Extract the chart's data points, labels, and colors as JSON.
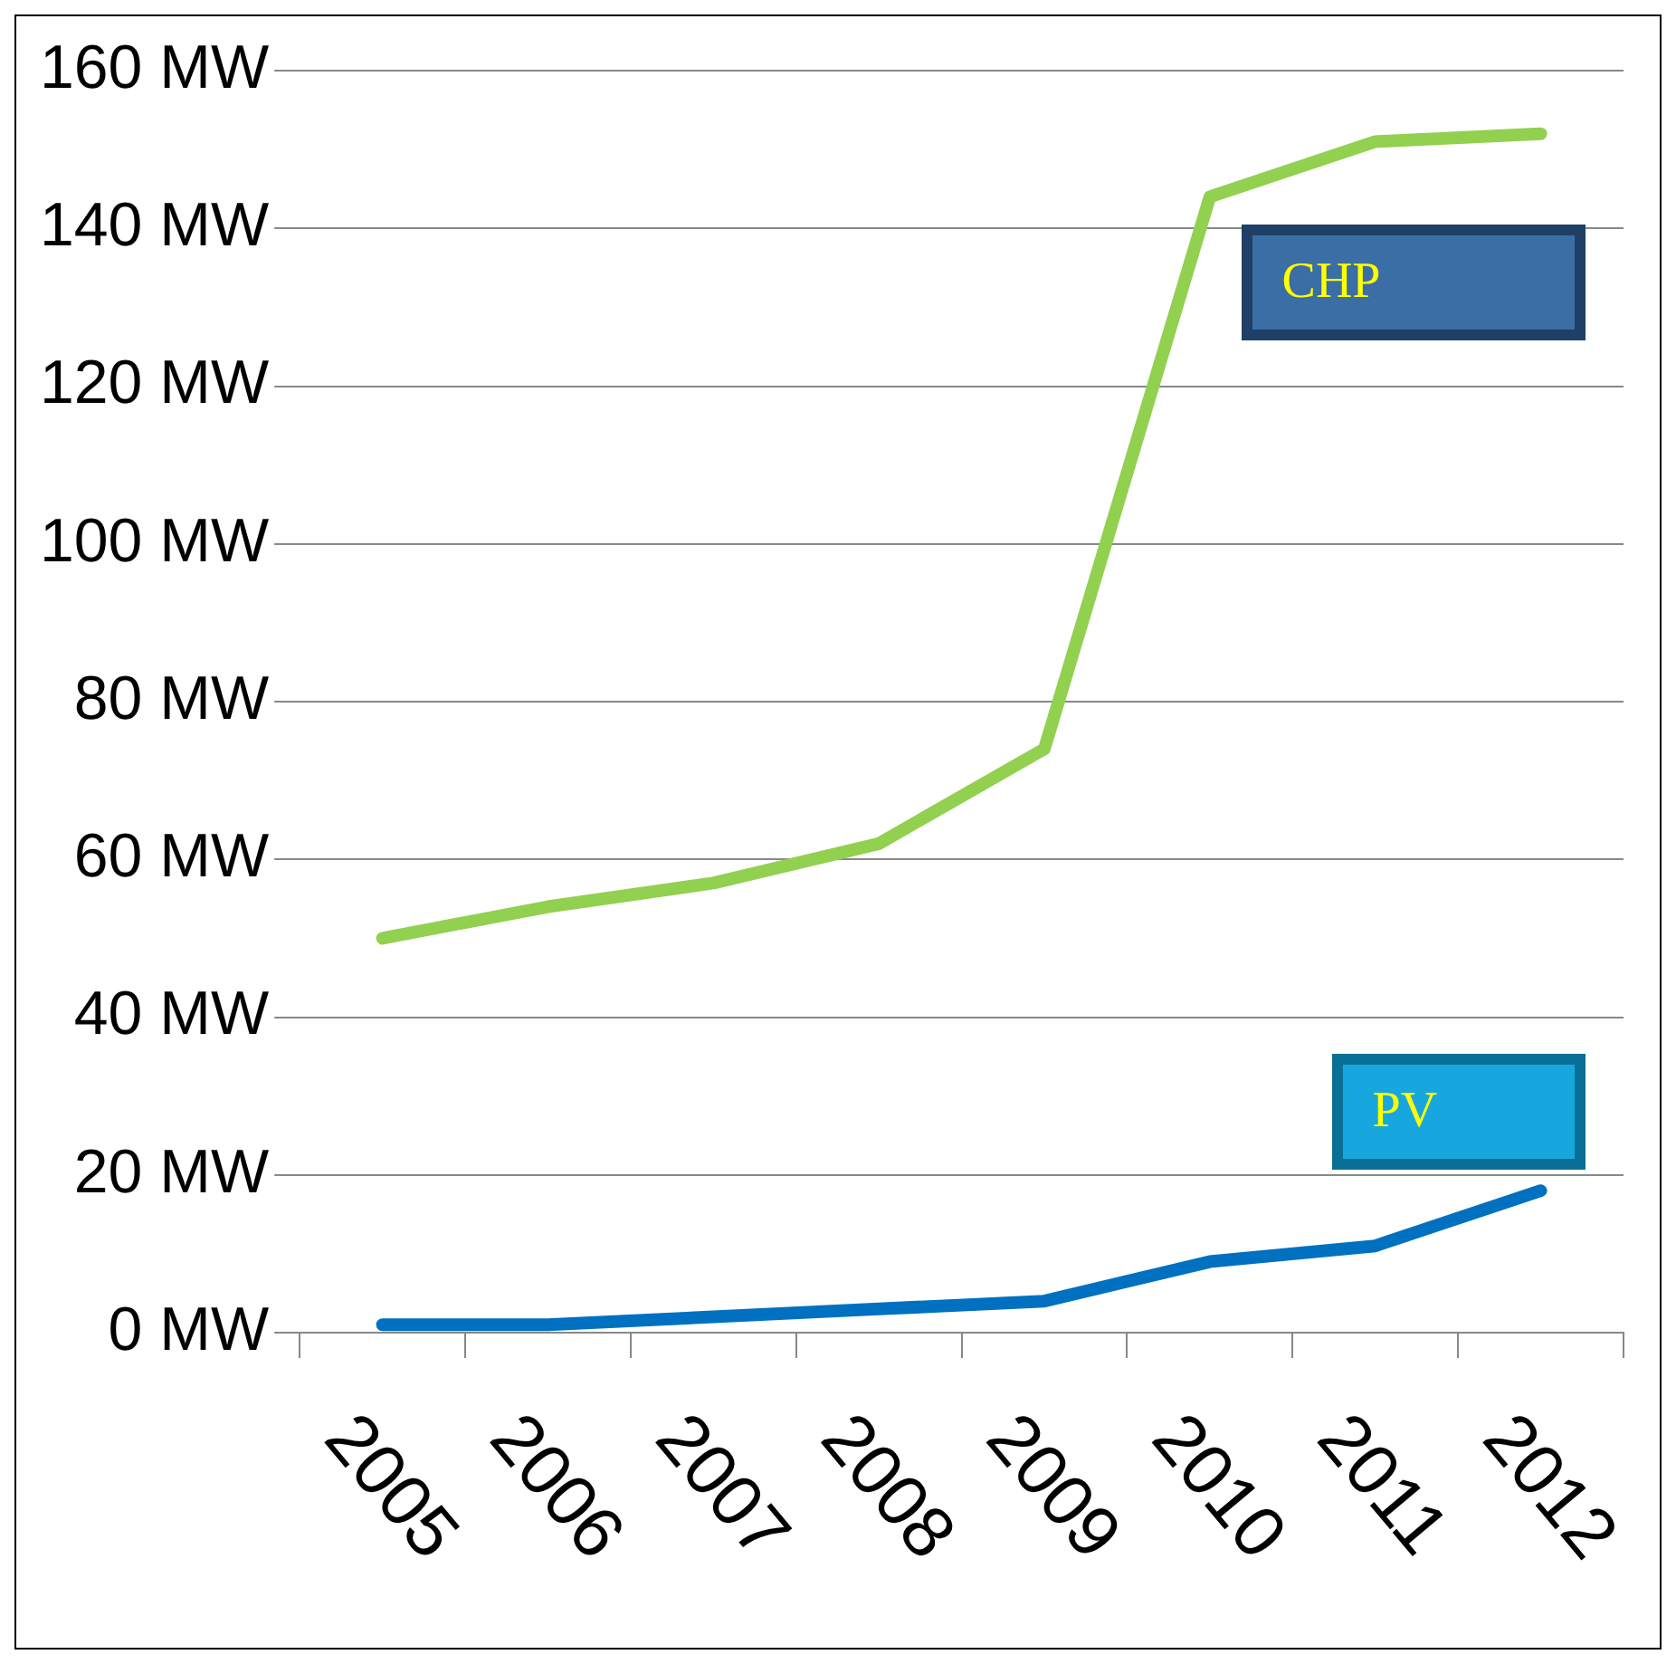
{
  "chart_data": {
    "type": "line",
    "categories": [
      "2005",
      "2006",
      "2007",
      "2008",
      "2009",
      "2010",
      "2011",
      "2012"
    ],
    "series": [
      {
        "name": "CHP",
        "color": "#92d050",
        "values": [
          50,
          54,
          57,
          62,
          74,
          144,
          151,
          152
        ]
      },
      {
        "name": "PV",
        "color": "#0070c0",
        "values": [
          1,
          1,
          2,
          3,
          4,
          9,
          11,
          18
        ]
      }
    ],
    "ylim": [
      0,
      160
    ],
    "yticks": [
      {
        "value": 0,
        "label": "0 MW"
      },
      {
        "value": 20,
        "label": "20 MW"
      },
      {
        "value": 40,
        "label": "40 MW"
      },
      {
        "value": 60,
        "label": "60 MW"
      },
      {
        "value": 80,
        "label": "80 MW"
      },
      {
        "value": 100,
        "label": "100 MW"
      },
      {
        "value": 120,
        "label": "120 MW"
      },
      {
        "value": 140,
        "label": "140 MW"
      },
      {
        "value": 160,
        "label": "160 MW"
      }
    ],
    "grid": "y",
    "legend": false,
    "marker": "none",
    "line_style": "solid"
  }
}
